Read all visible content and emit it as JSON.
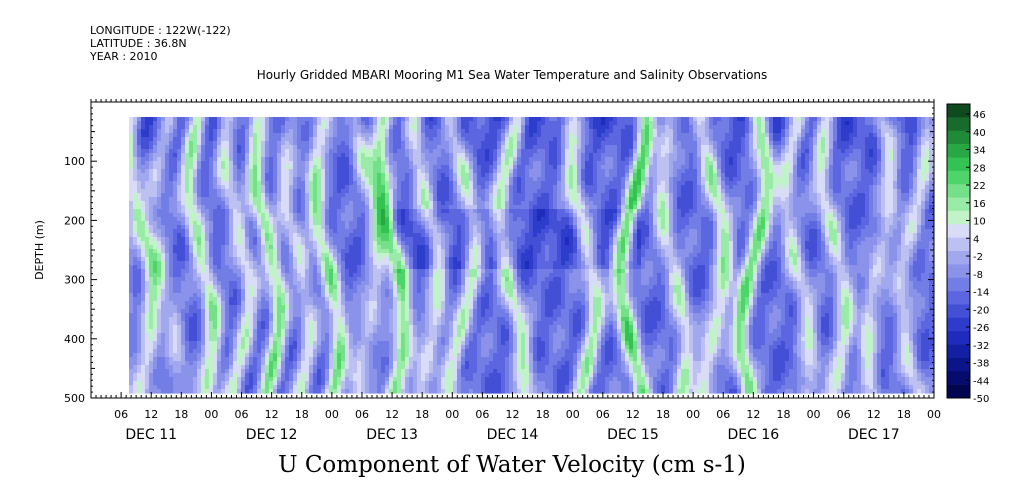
{
  "header": {
    "longitude": "LONGITUDE : 122W(-122)",
    "latitude": "LATITUDE : 36.8N",
    "year": "YEAR : 2010"
  },
  "chart_data": {
    "type": "heatmap",
    "title": "Hourly Gridded MBARI Mooring M1 Sea Water Temperature and Salinity Observations",
    "subtitle": "U Component of Water Velocity (cm s-1)",
    "ylabel": "DEPTH (m)",
    "xlabel": "",
    "y_reversed": true,
    "ylim": [
      500,
      0
    ],
    "y_ticks": [
      100,
      200,
      300,
      400,
      500
    ],
    "x_range_hours": [
      0,
      168
    ],
    "x_hour_ticks": [
      "06",
      "12",
      "18",
      "00",
      "06",
      "12",
      "18",
      "00",
      "06",
      "12",
      "18",
      "00",
      "06",
      "12",
      "18",
      "00",
      "06",
      "12",
      "18",
      "00",
      "06",
      "12",
      "18",
      "00",
      "06",
      "12",
      "18",
      "00"
    ],
    "x_day_labels": [
      "DEC 11",
      "DEC 12",
      "DEC 13",
      "DEC 14",
      "DEC 15",
      "DEC 16",
      "DEC 17"
    ],
    "data_depth_range": [
      25,
      488
    ],
    "colorbar": {
      "labels": [
        "46",
        "40",
        "34",
        "28",
        "22",
        "16",
        "10",
        "4",
        "-2",
        "-8",
        "-14",
        "-20",
        "-26",
        "-32",
        "-38",
        "-44",
        "-50"
      ],
      "levels_high_to_low": [
        "#0f4a1f",
        "#176b2c",
        "#1f8a38",
        "#28a845",
        "#34c252",
        "#4fd46a",
        "#74e08a",
        "#9aeaa8",
        "#c2f2c8",
        "#d8dcf6",
        "#bcc1f2",
        "#a2a8ee",
        "#8a92ea",
        "#727de6",
        "#5b66e0",
        "#4350d6",
        "#2e3ccb",
        "#1f2bba",
        "#141fa3",
        "#0c148a",
        "#060c6e",
        "#020650"
      ]
    },
    "green_bands": [
      {
        "center_hour": 4,
        "strength": 0.35
      },
      {
        "center_hour": 10,
        "strength": 0.6
      },
      {
        "center_hour": 15,
        "strength": 0.35
      },
      {
        "center_hour": 22,
        "strength": 0.65
      },
      {
        "center_hour": 29,
        "strength": 0.5
      },
      {
        "center_hour": 35,
        "strength": 0.7
      },
      {
        "center_hour": 41,
        "strength": 0.45
      },
      {
        "center_hour": 47,
        "strength": 0.7
      },
      {
        "center_hour": 55,
        "strength": 0.5
      },
      {
        "center_hour": 60,
        "strength": 0.8
      },
      {
        "center_hour": 67,
        "strength": 0.55
      },
      {
        "center_hour": 74,
        "strength": 0.55
      },
      {
        "center_hour": 84,
        "strength": 0.6
      },
      {
        "center_hour": 98,
        "strength": 0.6
      },
      {
        "center_hour": 108,
        "strength": 0.85
      },
      {
        "center_hour": 116,
        "strength": 0.55
      },
      {
        "center_hour": 124,
        "strength": 0.65
      },
      {
        "center_hour": 132,
        "strength": 0.75
      },
      {
        "center_hour": 141,
        "strength": 0.5
      },
      {
        "center_hour": 148,
        "strength": 0.55
      },
      {
        "center_hour": 157,
        "strength": 0.5
      },
      {
        "center_hour": 164,
        "strength": 0.45
      }
    ]
  }
}
